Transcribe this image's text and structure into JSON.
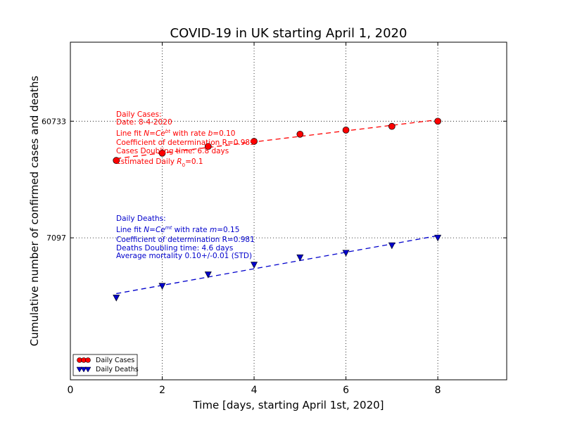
{
  "chart_data": {
    "type": "scatter",
    "title": "COVID-19 in UK starting April 1, 2020",
    "xlabel": "Time [days, starting April 1st, 2020]",
    "ylabel": "Cumulative number of confirmed cases and deaths",
    "xlim": [
      0,
      9.5
    ],
    "y_scale": "log",
    "ylim": [
      520,
      260000
    ],
    "xticks": [
      0,
      2,
      4,
      6,
      8
    ],
    "xtick_labels": [
      "0",
      "2",
      "4",
      "6",
      "8"
    ],
    "yticks": [
      7097,
      60733
    ],
    "ytick_labels": [
      "7097",
      "60733"
    ],
    "grid": true,
    "legend_position": "lower-left",
    "series": [
      {
        "name": "Daily Cases",
        "color": "#ff0000",
        "marker": "circle",
        "x": [
          1,
          2,
          3,
          4,
          5,
          6,
          7,
          8
        ],
        "y": [
          29474,
          33718,
          38168,
          41903,
          47806,
          51608,
          55242,
          60733
        ],
        "fit_rate": 0.1
      },
      {
        "name": "Daily Deaths",
        "color": "#0000cc",
        "marker": "triangle-down",
        "x": [
          1,
          2,
          3,
          4,
          5,
          6,
          7,
          8
        ],
        "y": [
          2352,
          2921,
          3605,
          4313,
          4934,
          5373,
          6159,
          7097
        ],
        "fit_rate": 0.15
      }
    ],
    "annotations": {
      "cases": {
        "color": "#ff0000",
        "lines": [
          "Daily Cases:",
          "Date: 8-4-2020",
          "Line fit N=Ce^bt with rate b=0.10",
          "Coefficient of determination R=0.989",
          "Cases Doubling time: 6.8 days",
          "Estimated Daily R_0=0.1"
        ]
      },
      "deaths": {
        "color": "#0000cc",
        "lines": [
          "Daily Deaths:",
          "Line fit N=Ce^mt with rate m=0.15",
          "Coefficient of determination R=0.981",
          "Deaths Doubling time: 4.6 days",
          "Average mortality 0.10+/-0.01 (STD)"
        ]
      }
    }
  }
}
